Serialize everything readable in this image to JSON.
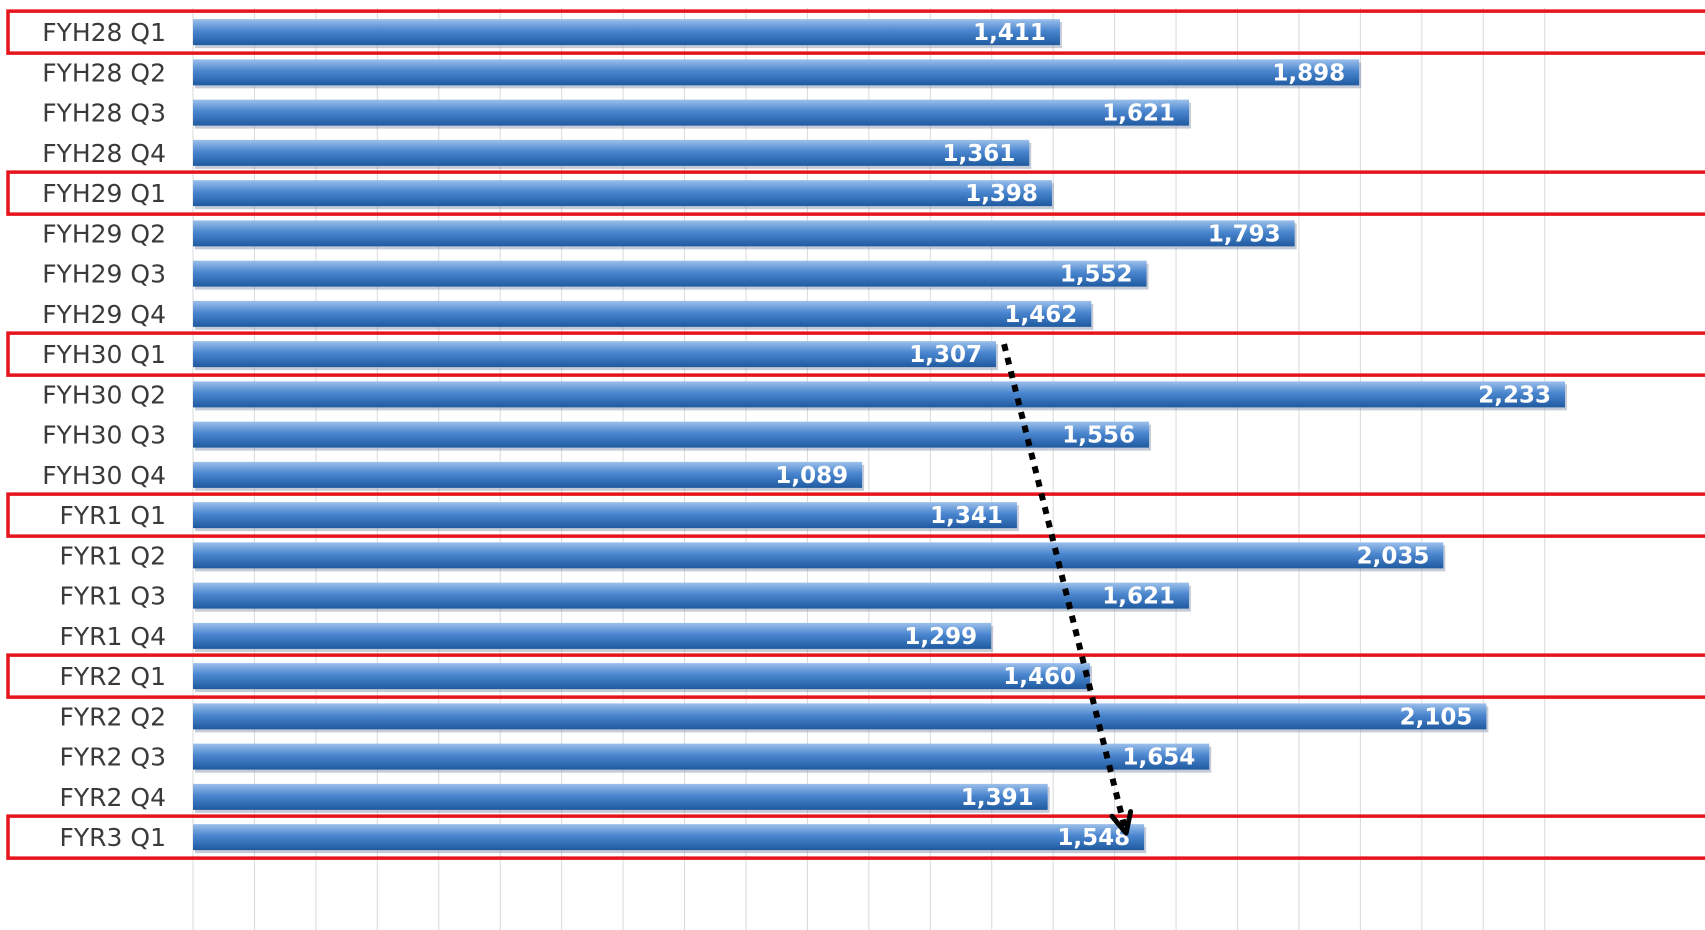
{
  "chart_data": {
    "type": "bar",
    "orientation": "horizontal",
    "categories": [
      "FYH28 Q1",
      "FYH28 Q2",
      "FYH28 Q3",
      "FYH28 Q4",
      "FYH29 Q1",
      "FYH29 Q2",
      "FYH29 Q3",
      "FYH29 Q4",
      "FYH30 Q1",
      "FYH30 Q2",
      "FYH30 Q3",
      "FYH30 Q4",
      "FYR1 Q1",
      "FYR1 Q2",
      "FYR1 Q3",
      "FYR1 Q4",
      "FYR2 Q1",
      "FYR2 Q2",
      "FYR2 Q3",
      "FYR2 Q4",
      "FYR3 Q1"
    ],
    "values": [
      1411,
      1898,
      1621,
      1361,
      1398,
      1793,
      1552,
      1462,
      1307,
      2233,
      1556,
      1089,
      1341,
      2035,
      1621,
      1299,
      1460,
      2105,
      1654,
      1391,
      1548
    ],
    "value_labels": [
      "1,411",
      "1,898",
      "1,621",
      "1,361",
      "1,398",
      "1,793",
      "1,552",
      "1,462",
      "1,307",
      "2,233",
      "1,556",
      "1,089",
      "1,341",
      "2,035",
      "1,621",
      "1,299",
      "1,460",
      "2,105",
      "1,654",
      "1,391",
      "1,548"
    ],
    "xlim": [
      0,
      2250
    ],
    "grid": true,
    "highlighted_categories": [
      "FYH28 Q1",
      "FYH29 Q1",
      "FYH30 Q1",
      "FYR1 Q1",
      "FYR2 Q1",
      "FYR3 Q1"
    ],
    "trend_arrow": {
      "from": "FYH30 Q1",
      "to": "FYR3 Q1"
    },
    "title": "",
    "xlabel": "",
    "ylabel": ""
  },
  "colors": {
    "bar_light": "#9cc0ea",
    "bar_mid": "#4a86cf",
    "bar_dark": "#1f5aa0",
    "highlight_box": "#e6141c",
    "grid": "#d9d9d9",
    "arrow": "#000000"
  }
}
